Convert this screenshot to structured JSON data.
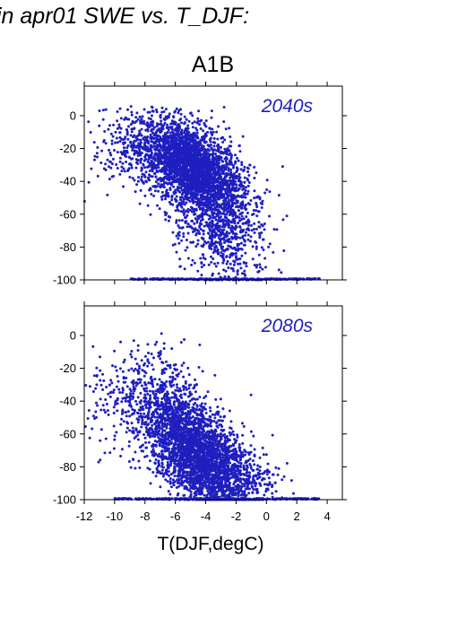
{
  "title": "in apr01 SWE vs. T_DJF:",
  "scenario": "A1B",
  "xlabel": "T(DJF,degC)",
  "colors": {
    "points": "#1f1fbf",
    "axes": "#000000",
    "label": "#1f1fbf"
  },
  "chart_data": [
    {
      "type": "scatter",
      "title": "2040s",
      "xlim": [
        -12,
        5
      ],
      "ylim": [
        -100,
        18
      ],
      "yticks": [
        0,
        -20,
        -40,
        -60,
        -80,
        -100
      ],
      "xticks": [
        -12,
        -10,
        -8,
        -6,
        -4,
        -2,
        0,
        2,
        4
      ],
      "show_xtick_labels": false,
      "cloud": [
        {
          "cx": -5.0,
          "cy": -30,
          "sx": 1.6,
          "sy": 13,
          "n": 2100,
          "rho": -0.45
        },
        {
          "cx": -3.8,
          "cy": -55,
          "sx": 1.4,
          "sy": 20,
          "n": 900,
          "rho": -0.3
        },
        {
          "cx": -7.5,
          "cy": -20,
          "sx": 2.0,
          "sy": 12,
          "n": 500,
          "rho": 0.0
        },
        {
          "cx": -2.0,
          "cy": -70,
          "sx": 1.3,
          "sy": 18,
          "n": 250,
          "rho": 0.0
        }
      ],
      "floor": {
        "y": -99.5,
        "xmin": -9,
        "xmax": 3.5,
        "n": 260
      }
    },
    {
      "type": "scatter",
      "title": "2080s",
      "xlim": [
        -12,
        5
      ],
      "ylim": [
        -100,
        18
      ],
      "yticks": [
        0,
        -20,
        -40,
        -60,
        -80,
        -100
      ],
      "xticks": [
        -12,
        -10,
        -8,
        -6,
        -4,
        -2,
        0,
        2,
        4
      ],
      "xticklabels": [
        "-12",
        "-10",
        "-8",
        "-6",
        "-4",
        "-2",
        "0",
        "2",
        "4"
      ],
      "show_xtick_labels": true,
      "cloud": [
        {
          "cx": -5.2,
          "cy": -65,
          "sx": 1.5,
          "sy": 16,
          "n": 1800,
          "rho": -0.4
        },
        {
          "cx": -3.5,
          "cy": -82,
          "sx": 1.3,
          "sy": 12,
          "n": 900,
          "rho": -0.2
        },
        {
          "cx": -8.0,
          "cy": -40,
          "sx": 1.8,
          "sy": 17,
          "n": 450,
          "rho": 0.0
        },
        {
          "cx": -1.5,
          "cy": -88,
          "sx": 1.2,
          "sy": 10,
          "n": 250,
          "rho": 0.0
        }
      ],
      "floor": {
        "y": -99.5,
        "xmin": -10,
        "xmax": 3.5,
        "n": 280
      }
    }
  ]
}
